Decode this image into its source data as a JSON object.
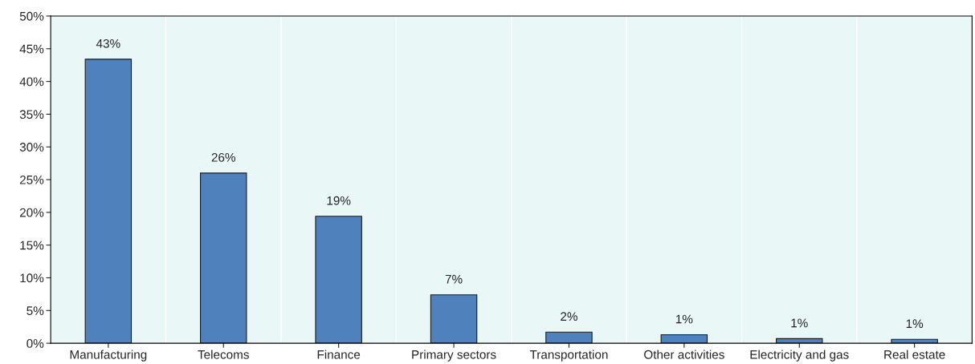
{
  "chart_data": {
    "type": "bar",
    "categories": [
      "Manufacturing",
      "Telecoms",
      "Finance",
      "Primary sectors",
      "Transportation",
      "Other activities",
      "Electricity and gas",
      "Real estate"
    ],
    "values": [
      43.4,
      26.0,
      19.4,
      7.4,
      1.7,
      1.3,
      0.7,
      0.6
    ],
    "value_labels": [
      "43%",
      "26%",
      "19%",
      "7%",
      "2%",
      "1%",
      "1%",
      "1%"
    ],
    "color": "#4f81bd",
    "ylim": [
      0,
      50
    ],
    "yticks": [
      {
        "value": 0,
        "label": "0%"
      },
      {
        "value": 5,
        "label": "5%"
      },
      {
        "value": 10,
        "label": "10%"
      },
      {
        "value": 15,
        "label": "15%"
      },
      {
        "value": 20,
        "label": "20%"
      },
      {
        "value": 25,
        "label": "25%"
      },
      {
        "value": 30,
        "label": "30%"
      },
      {
        "value": 35,
        "label": "35%"
      },
      {
        "value": 40,
        "label": "40%"
      },
      {
        "value": 45,
        "label": "45%"
      },
      {
        "value": 50,
        "label": "50%"
      }
    ],
    "grid": false,
    "legend": false
  }
}
